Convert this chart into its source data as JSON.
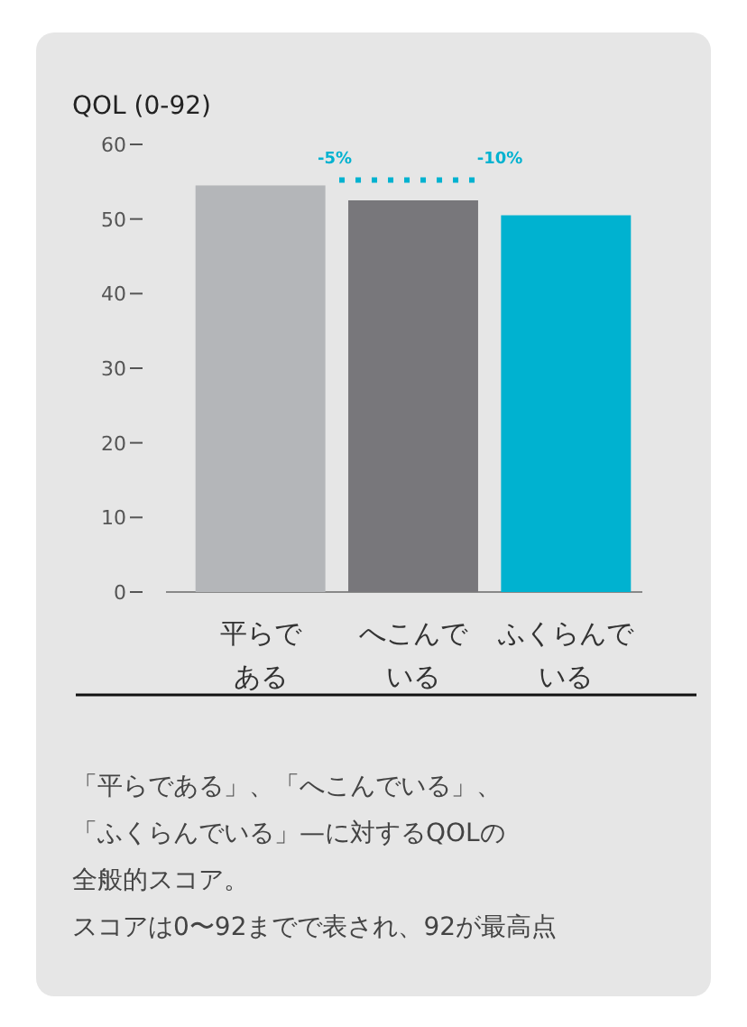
{
  "chart_data": {
    "type": "bar",
    "ylabel": "QOL (0-92)",
    "categories": [
      "平らである",
      "へこんでいる",
      "ふくらんでいる"
    ],
    "values": [
      54.5,
      52.5,
      50.5
    ],
    "colors": [
      "#b4b6b9",
      "#78777b",
      "#00b2d0"
    ],
    "ylim": [
      0,
      60
    ],
    "yticks": [
      0,
      10,
      20,
      30,
      40,
      50,
      60
    ],
    "grid": false,
    "annotations": [
      "-5%",
      "-10%",
      "「平らである」、「へこんでいる」、",
      "「ふくらんでいる」—に対するQOLの",
      "全般的スコア。",
      "スコアは0〜92までで表され、92が最高点"
    ]
  }
}
